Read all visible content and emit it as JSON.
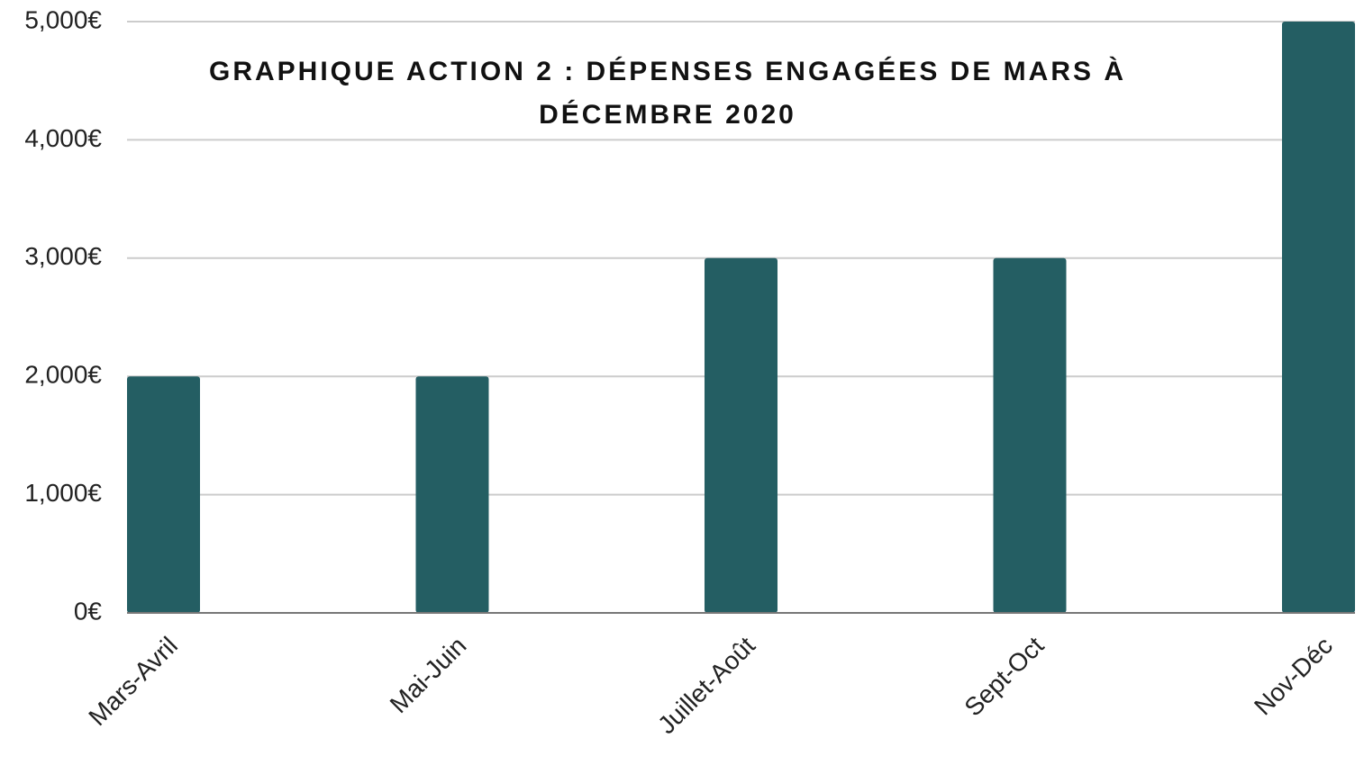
{
  "chart_data": {
    "type": "bar",
    "title": "GRAPHIQUE ACTION 2 : DÉPENSES ENGAGÉES DE MARS À DÉCEMBRE 2020",
    "categories": [
      "Mars-Avril",
      "Mai-Juin",
      "Juillet-Août",
      "Sept-Oct",
      "Nov-Déc"
    ],
    "values": [
      2000,
      2000,
      3000,
      3000,
      5000
    ],
    "color": "#245e63",
    "ylim": [
      0,
      5000
    ],
    "yticks": [
      {
        "value": 0,
        "label": "0€"
      },
      {
        "value": 1000,
        "label": "1,000€"
      },
      {
        "value": 2000,
        "label": "2,000€"
      },
      {
        "value": 3000,
        "label": "3,000€"
      },
      {
        "value": 4000,
        "label": "4,000€"
      },
      {
        "value": 5000,
        "label": "5,000€"
      }
    ],
    "grid": true
  }
}
